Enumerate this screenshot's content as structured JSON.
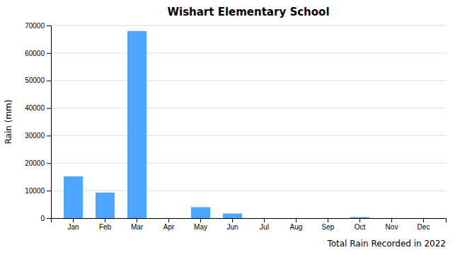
{
  "chart_data": {
    "type": "bar",
    "title": "Wishart Elementary School",
    "xlabel": "Total Rain Recorded in 2022",
    "ylabel": "Rain (mm)",
    "categories": [
      "Jan",
      "Feb",
      "Mar",
      "Apr",
      "May",
      "Jun",
      "Jul",
      "Aug",
      "Sep",
      "Oct",
      "Nov",
      "Dec"
    ],
    "values": [
      15200,
      9300,
      68000,
      0,
      4000,
      1700,
      0,
      0,
      0,
      400,
      0,
      0
    ],
    "color": "#4da6ff",
    "ylim": [
      0,
      70000
    ],
    "yticks": [
      0,
      10000,
      20000,
      30000,
      40000,
      50000,
      60000,
      70000
    ],
    "grid": true
  }
}
